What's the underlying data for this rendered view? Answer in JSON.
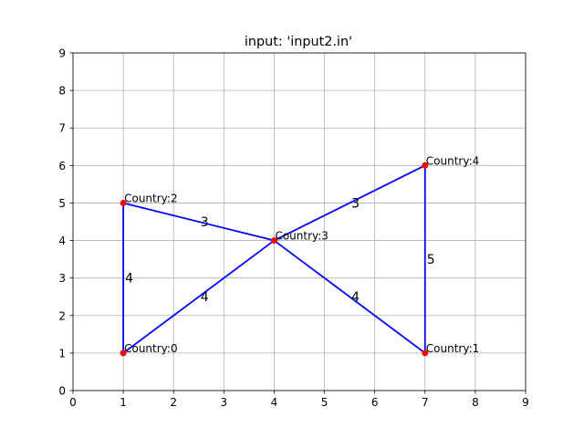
{
  "chart_data": {
    "type": "scatter",
    "title": "input: 'input2.in'",
    "xlabel": "",
    "ylabel": "",
    "xlim": [
      0,
      9
    ],
    "ylim": [
      0,
      9
    ],
    "xticks": [
      0,
      1,
      2,
      3,
      4,
      5,
      6,
      7,
      8,
      9
    ],
    "yticks": [
      0,
      1,
      2,
      3,
      4,
      5,
      6,
      7,
      8,
      9
    ],
    "grid": true,
    "nodes": [
      {
        "label": "Country:0",
        "x": 1,
        "y": 1
      },
      {
        "label": "Country:1",
        "x": 7,
        "y": 1
      },
      {
        "label": "Country:2",
        "x": 1,
        "y": 5
      },
      {
        "label": "Country:3",
        "x": 4,
        "y": 4
      },
      {
        "label": "Country:4",
        "x": 7,
        "y": 6
      }
    ],
    "edges": [
      {
        "from": 0,
        "to": 2,
        "weight": "4"
      },
      {
        "from": 0,
        "to": 3,
        "weight": "4"
      },
      {
        "from": 2,
        "to": 3,
        "weight": "3"
      },
      {
        "from": 3,
        "to": 4,
        "weight": "3"
      },
      {
        "from": 3,
        "to": 1,
        "weight": "4"
      },
      {
        "from": 4,
        "to": 1,
        "weight": "5"
      }
    ],
    "colors": {
      "edge": "#0000ff",
      "node": "#ff0000"
    }
  }
}
